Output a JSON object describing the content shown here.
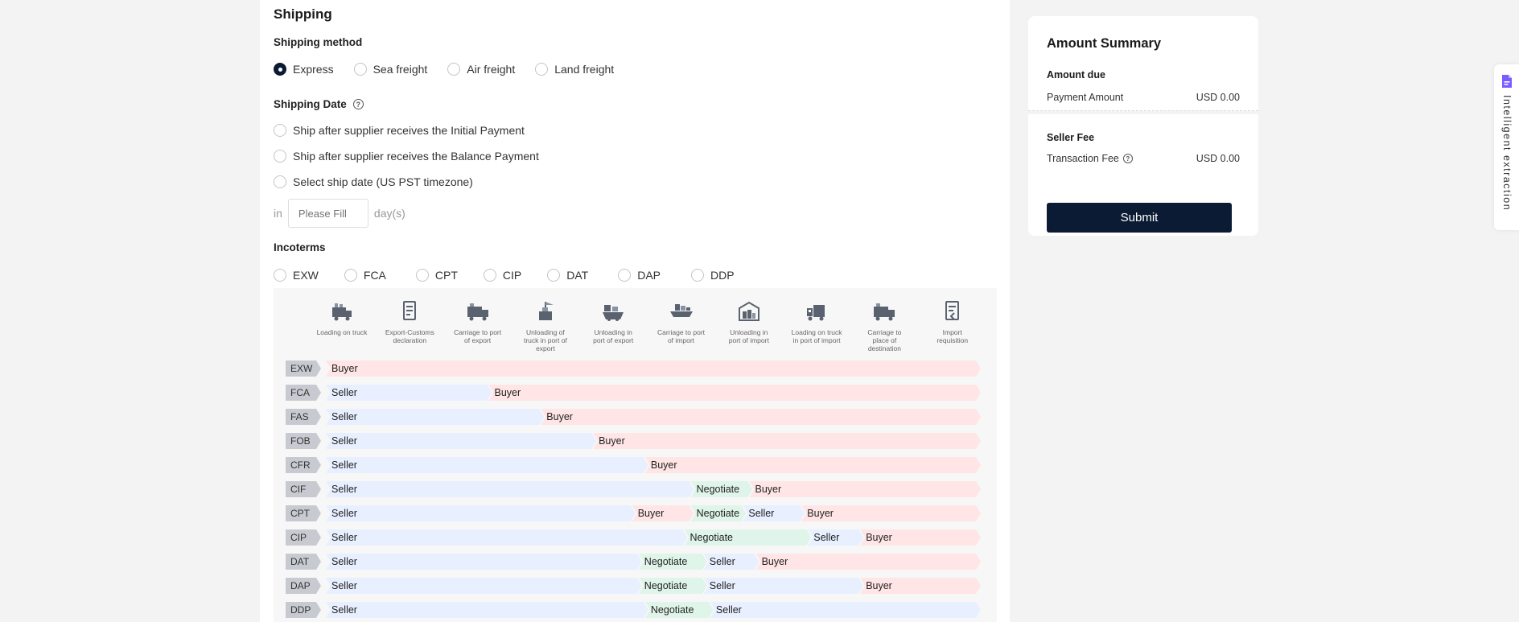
{
  "shipping": {
    "title": "Shipping",
    "method_label": "Shipping method",
    "methods": [
      "Express",
      "Sea freight",
      "Air freight",
      "Land freight"
    ],
    "selected_method": "Express",
    "date_label": "Shipping Date",
    "date_options": [
      "Ship after supplier receives the Initial Payment",
      "Ship after supplier receives the Balance Payment",
      "Select ship date (US PST timezone)"
    ],
    "days_prefix": "in",
    "days_placeholder": "Please Fill",
    "days_suffix": "day(s)"
  },
  "incoterms": {
    "label": "Incoterms",
    "options": [
      "EXW",
      "FCA",
      "CPT",
      "CIP",
      "DAT",
      "DAP",
      "DDP"
    ],
    "steps": [
      {
        "label": "Loading on truck",
        "icon": "truck-loading-icon"
      },
      {
        "label": "Export-Customs declaration",
        "icon": "customs-document-icon"
      },
      {
        "label": "Carriage to port of export",
        "icon": "truck-icon"
      },
      {
        "label": "Unloading of truck in port of export",
        "icon": "crane-icon"
      },
      {
        "label": "Unloading in port of export",
        "icon": "ship-icon"
      },
      {
        "label": "Carriage to port of import",
        "icon": "ship-cargo-icon"
      },
      {
        "label": "Unloading in port of import",
        "icon": "warehouse-icon"
      },
      {
        "label": "Loading on truck in port of import",
        "icon": "forklift-icon"
      },
      {
        "label": "Carriage to place of destination",
        "icon": "truck-icon"
      },
      {
        "label": "Import requisition",
        "icon": "document-icon"
      }
    ],
    "rows": [
      {
        "term": "EXW",
        "segments": [
          {
            "party": "Buyer",
            "type": "buyer",
            "from": 0,
            "to": 10
          }
        ]
      },
      {
        "term": "FCA",
        "segments": [
          {
            "party": "Seller",
            "type": "seller",
            "from": 0,
            "to": 2.5
          },
          {
            "party": "Buyer",
            "type": "buyer",
            "from": 2.5,
            "to": 10
          }
        ]
      },
      {
        "term": "FAS",
        "segments": [
          {
            "party": "Seller",
            "type": "seller",
            "from": 0,
            "to": 3.3
          },
          {
            "party": "Buyer",
            "type": "buyer",
            "from": 3.3,
            "to": 10
          }
        ]
      },
      {
        "term": "FOB",
        "segments": [
          {
            "party": "Seller",
            "type": "seller",
            "from": 0,
            "to": 4.1
          },
          {
            "party": "Buyer",
            "type": "buyer",
            "from": 4.1,
            "to": 10
          }
        ]
      },
      {
        "term": "CFR",
        "segments": [
          {
            "party": "Seller",
            "type": "seller",
            "from": 0,
            "to": 4.9
          },
          {
            "party": "Buyer",
            "type": "buyer",
            "from": 4.9,
            "to": 10
          }
        ]
      },
      {
        "term": "CIF",
        "segments": [
          {
            "party": "Seller",
            "type": "seller",
            "from": 0,
            "to": 5.6
          },
          {
            "party": "Negotiate",
            "type": "negotiate",
            "from": 5.6,
            "to": 6.5
          },
          {
            "party": "Buyer",
            "type": "buyer",
            "from": 6.5,
            "to": 10
          }
        ]
      },
      {
        "term": "CPT",
        "segments": [
          {
            "party": "Seller",
            "type": "seller",
            "from": 0,
            "to": 4.7
          },
          {
            "party": "Buyer",
            "type": "buyer",
            "from": 4.7,
            "to": 5.6
          },
          {
            "party": "Negotiate",
            "type": "negotiate",
            "from": 5.6,
            "to": 6.4
          },
          {
            "party": "Seller",
            "type": "seller",
            "from": 6.4,
            "to": 7.3
          },
          {
            "party": "Buyer",
            "type": "buyer",
            "from": 7.3,
            "to": 10
          }
        ]
      },
      {
        "term": "CIP",
        "segments": [
          {
            "party": "Seller",
            "type": "seller",
            "from": 0,
            "to": 5.5
          },
          {
            "party": "Negotiate",
            "type": "negotiate",
            "from": 5.5,
            "to": 7.4
          },
          {
            "party": "Seller",
            "type": "seller",
            "from": 7.4,
            "to": 8.2
          },
          {
            "party": "Buyer",
            "type": "buyer",
            "from": 8.2,
            "to": 10
          }
        ]
      },
      {
        "term": "DAT",
        "segments": [
          {
            "party": "Seller",
            "type": "seller",
            "from": 0,
            "to": 4.8
          },
          {
            "party": "Negotiate",
            "type": "negotiate",
            "from": 4.8,
            "to": 5.8
          },
          {
            "party": "Seller",
            "type": "seller",
            "from": 5.8,
            "to": 6.6
          },
          {
            "party": "Buyer",
            "type": "buyer",
            "from": 6.6,
            "to": 10
          }
        ]
      },
      {
        "term": "DAP",
        "segments": [
          {
            "party": "Seller",
            "type": "seller",
            "from": 0,
            "to": 4.8
          },
          {
            "party": "Negotiate",
            "type": "negotiate",
            "from": 4.8,
            "to": 5.8
          },
          {
            "party": "Seller",
            "type": "seller",
            "from": 5.8,
            "to": 8.2
          },
          {
            "party": "Buyer",
            "type": "buyer",
            "from": 8.2,
            "to": 10
          }
        ]
      },
      {
        "term": "DDP",
        "segments": [
          {
            "party": "Seller",
            "type": "seller",
            "from": 0,
            "to": 4.9
          },
          {
            "party": "Negotiate",
            "type": "negotiate",
            "from": 4.9,
            "to": 5.9
          },
          {
            "party": "Seller",
            "type": "seller",
            "from": 5.9,
            "to": 10
          }
        ]
      }
    ]
  },
  "summary": {
    "title": "Amount Summary",
    "amount_due_label": "Amount due",
    "payment_amount_label": "Payment Amount",
    "payment_amount_value": "USD 0.00",
    "seller_fee_label": "Seller Fee",
    "transaction_fee_label": "Transaction Fee",
    "transaction_fee_value": "USD 0.00",
    "submit_label": "Submit"
  },
  "side_tab": {
    "label": "Intelligent extraction",
    "icon": "document-extract-icon"
  },
  "colors": {
    "primary": "#0b1b33",
    "seller": "#e8efff",
    "buyer": "#ffe5e5",
    "negotiate": "#e0f5ea",
    "side_icon": "#7b5cff"
  }
}
